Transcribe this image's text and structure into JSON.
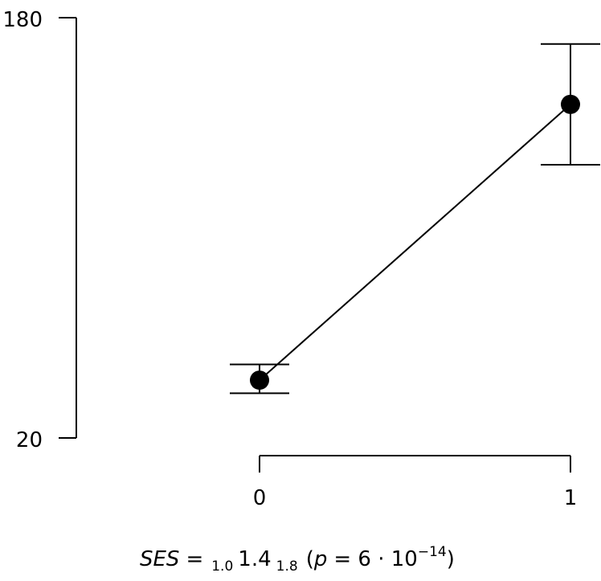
{
  "chart_data": {
    "type": "scatter",
    "title": "",
    "xlabel": "",
    "ylabel": "",
    "x_ticks": [
      "0",
      "1"
    ],
    "y_ticks": [
      "20",
      "180"
    ],
    "ylim": [
      20,
      180
    ],
    "grid": false,
    "legend": "none",
    "series": [
      {
        "points": [
          {
            "x": 0,
            "y": 42,
            "lower": 37,
            "upper": 48
          },
          {
            "x": 1,
            "y": 147,
            "lower": 124,
            "upper": 170
          }
        ]
      }
    ],
    "annotation": {
      "lhs": "SES",
      "eq": "=",
      "ci_low": "1.0",
      "estimate": "1.4",
      "ci_high": "1.8",
      "open": "(",
      "p_label": "p",
      "p_eq": "= 6 · 10",
      "p_exp": "−14",
      "close": ")"
    },
    "colors": {
      "ink": "#000000"
    }
  }
}
